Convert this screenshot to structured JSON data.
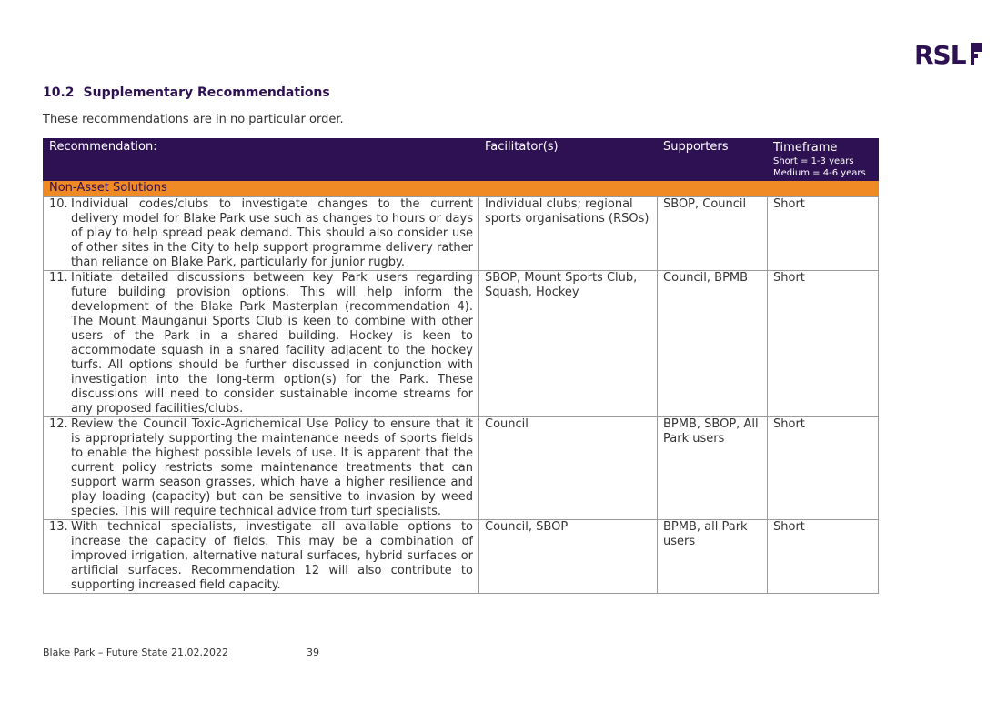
{
  "logo": {
    "text": "RSL"
  },
  "section": {
    "number": "10.2",
    "title": "Supplementary Recommendations"
  },
  "intro": "These recommendations are in no particular order.",
  "table": {
    "headers": {
      "recommendation": "Recommendation:",
      "facilitators": "Facilitator(s)",
      "supporters": "Supporters",
      "timeframe": "Timeframe",
      "timeframe_short": "Short = 1-3 years",
      "timeframe_medium": "Medium = 4-6 years"
    },
    "section_label": "Non-Asset Solutions",
    "rows": [
      {
        "num": "10.",
        "text": "Individual codes/clubs to investigate changes to the current delivery model for Blake Park use such as changes to hours or days of play to help spread peak demand. This should also consider use of other sites in the City to help support programme delivery rather than reliance on Blake Park, particularly for junior rugby.",
        "facilitators": "Individual clubs; regional sports organisations (RSOs)",
        "supporters": "SBOP, Council",
        "timeframe": "Short"
      },
      {
        "num": "11.",
        "text": "Initiate detailed discussions between key Park users regarding future building provision options. This will help inform the development of the Blake Park Masterplan (recommendation 4). The Mount Maunganui Sports Club is keen to combine with other users of the Park in a shared building. Hockey is keen to accommodate squash in a shared facility adjacent to the hockey turfs. All options should be further discussed in conjunction with investigation into the long-term option(s) for the Park. These discussions will need to consider sustainable income streams for any proposed facilities/clubs.",
        "facilitators": "SBOP, Mount Sports Club, Squash, Hockey",
        "supporters": "Council, BPMB",
        "timeframe": "Short"
      },
      {
        "num": "12.",
        "text": "Review the Council Toxic-Agrichemical Use Policy to ensure that it is appropriately supporting the maintenance needs of sports fields to enable the highest possible levels of use. It is apparent that the current policy restricts some maintenance treatments that can support warm season grasses, which have a higher resilience and play loading (capacity) but can be sensitive to invasion by weed species. This will require technical advice from turf specialists.",
        "facilitators": "Council",
        "supporters": "BPMB, SBOP, All Park users",
        "timeframe": "Short"
      },
      {
        "num": "13.",
        "text": "With technical specialists, investigate all available options to increase the capacity of fields. This may be a combination of improved irrigation, alternative natural surfaces, hybrid surfaces or artificial surfaces. Recommendation 12 will also contribute to supporting increased field capacity.",
        "facilitators": "Council, SBOP",
        "supporters": "BPMB, all Park users",
        "timeframe": "Short"
      }
    ]
  },
  "footer": {
    "document": "Blake Park – Future State 21.02.2022",
    "page": "39"
  },
  "colors": {
    "brand_purple": "#2e1153",
    "section_orange": "#f08a24"
  }
}
